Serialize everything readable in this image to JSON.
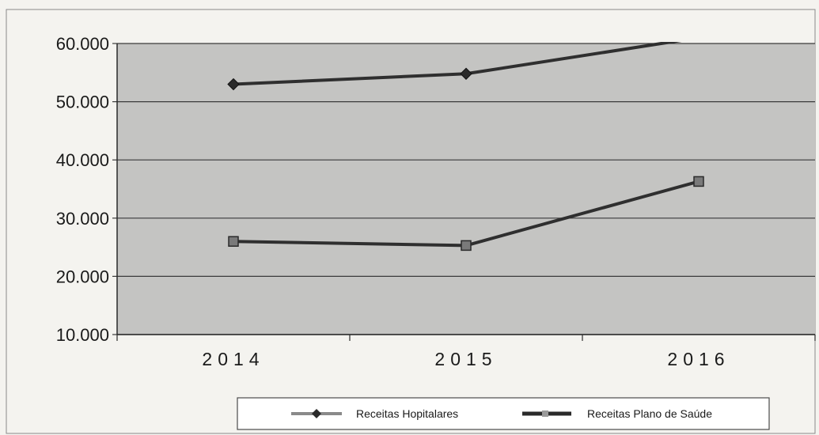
{
  "chart_data": {
    "type": "line",
    "categories": [
      "2014",
      "2015",
      "2016"
    ],
    "series": [
      {
        "name": "Receitas Hopitalares",
        "values": [
          53000,
          54800,
          61000
        ],
        "marker": "diamond"
      },
      {
        "name": "Receitas Plano de Saúde",
        "values": [
          26000,
          25300,
          36300
        ],
        "marker": "square"
      }
    ],
    "title": "",
    "xlabel": "",
    "ylabel": "",
    "ylim": [
      10000,
      60000
    ],
    "yticks": [
      "10.000",
      "20.000",
      "30.000",
      "40.000",
      "50.000",
      "60.000"
    ],
    "grid": true,
    "legend_position": "bottom"
  },
  "colors": {
    "plot_background": "#c4c4c2",
    "series_line": "#2f2f2f",
    "grid": "#3a3a3a",
    "page": "#f4f3ef"
  }
}
